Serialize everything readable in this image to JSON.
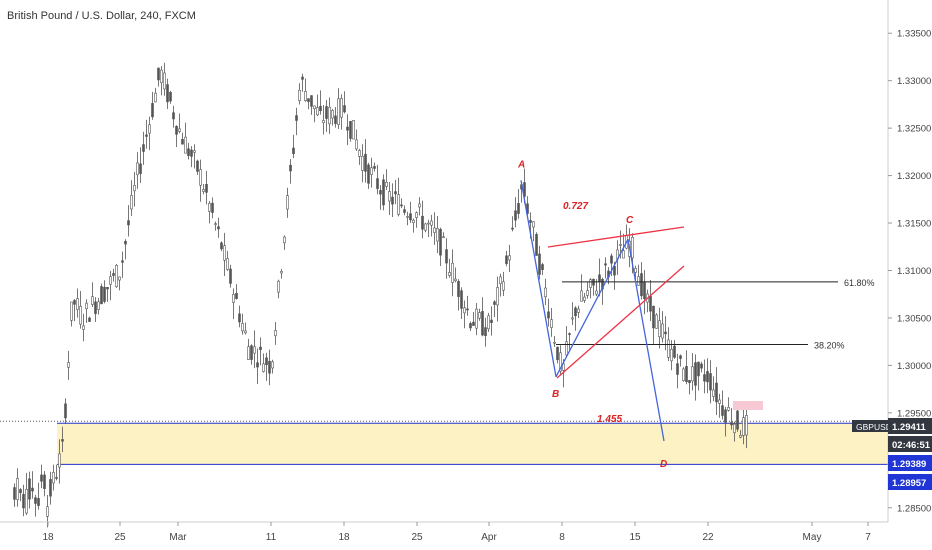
{
  "chart_title": "British Pound / U.S. Dollar, 240, FXCM",
  "colors": {
    "candle": "#555555",
    "pattern_lines": "#4466dd",
    "wedge": "#ee3344",
    "fib_line": "#222222",
    "zone_fill": "#fdf2c4",
    "zone_border": "#2233cc",
    "label_red": "#dd2222",
    "pink_box": "#f6c9d4",
    "price_tag_dark": "#333740",
    "price_tag_blue": "#1f35d6"
  },
  "chart_data": {
    "type": "candlestick",
    "symbol": "GBPUSD",
    "timeframe": "240",
    "ylim": [
      1.2835,
      1.3385
    ],
    "y_ticks": [
      "1.33500",
      "1.33000",
      "1.32500",
      "1.32000",
      "1.31500",
      "1.31000",
      "1.30500",
      "1.30000",
      "1.29500",
      "1.29000",
      "1.28500"
    ],
    "x_ticks": [
      "18",
      "25",
      "Mar",
      "11",
      "18",
      "25",
      "Apr",
      "8",
      "15",
      "22",
      "May",
      "7"
    ],
    "price_path": [
      [
        "18",
        1.286
      ],
      [
        "20",
        1.291
      ],
      [
        "21",
        1.307
      ],
      [
        "22",
        1.305
      ],
      [
        "25",
        1.31
      ],
      [
        "26",
        1.319
      ],
      [
        "28",
        1.331
      ],
      [
        "Mar",
        1.325
      ],
      [
        "4",
        1.32
      ],
      [
        "6",
        1.313
      ],
      [
        "8",
        1.302
      ],
      [
        "11",
        1.3
      ],
      [
        "12",
        1.312
      ],
      [
        "14",
        1.33
      ],
      [
        "15",
        1.326
      ],
      [
        "18",
        1.327
      ],
      [
        "20",
        1.321
      ],
      [
        "22",
        1.318
      ],
      [
        "25",
        1.316
      ],
      [
        "27",
        1.313
      ],
      [
        "29",
        1.305
      ],
      [
        "Apr",
        1.304
      ],
      [
        "3",
        1.31
      ],
      [
        "4",
        1.319
      ],
      [
        "5",
        1.313
      ],
      [
        "8",
        1.299
      ],
      [
        "9",
        1.306
      ],
      [
        "11",
        1.309
      ],
      [
        "15",
        1.313
      ],
      [
        "16",
        1.307
      ],
      [
        "18",
        1.302
      ],
      [
        "19",
        1.299
      ],
      [
        "22",
        1.299
      ],
      [
        "23",
        1.296
      ],
      [
        "24",
        1.2935
      ]
    ],
    "pattern": {
      "points": [
        {
          "label": "A",
          "price": 1.3195
        },
        {
          "label": "B",
          "price": 1.2988
        },
        {
          "label": "C",
          "price": 1.3133
        },
        {
          "label": "D",
          "price": 1.2935
        }
      ],
      "ratios": [
        "0.727",
        "1.455"
      ]
    },
    "fib_levels": [
      {
        "label": "61.80%",
        "price": 1.3088
      },
      {
        "label": "38.20%",
        "price": 1.3022
      }
    ],
    "support_zone": {
      "top": 1.2939,
      "bottom": 1.28957
    },
    "price_tags": [
      {
        "label": "GBPUSD",
        "value": "1.29411"
      },
      {
        "label": "countdown",
        "value": "02:46:51"
      },
      {
        "label": "zone_top",
        "value": "1.29389"
      },
      {
        "label": "zone_bottom",
        "value": "1.28957"
      }
    ]
  }
}
